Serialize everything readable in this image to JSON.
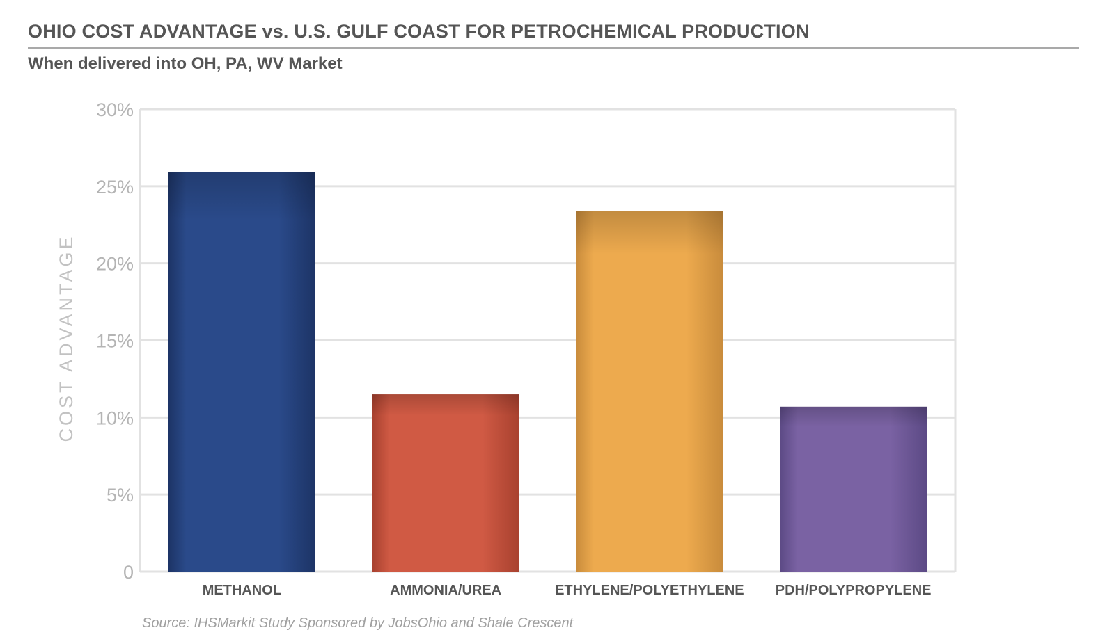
{
  "title": "OHIO COST ADVANTAGE vs. U.S. GULF COAST FOR PETROCHEMICAL PRODUCTION",
  "subtitle": "When delivered into OH, PA, WV Market",
  "source": "Source: IHSMarkit Study Sponsored by JobsOhio and Shale Crescent",
  "chart_data": {
    "type": "bar",
    "categories": [
      "METHANOL",
      "AMMONIA/UREA",
      "ETHYLENE/POLYETHYLENE",
      "PDH/POLYPROPYLENE"
    ],
    "values": [
      25.9,
      11.5,
      23.4,
      10.7
    ],
    "ylabel": "COST ADVANTAGE",
    "ylim": [
      0,
      30
    ],
    "yticks": [
      0,
      5,
      10,
      15,
      20,
      25,
      30
    ],
    "ytick_labels": [
      "0",
      "5%",
      "10%",
      "15%",
      "20%",
      "25%",
      "30%"
    ],
    "grid": true,
    "legend": "none",
    "colors": [
      "#2a4a8a",
      "#d05a44",
      "#edaa4e",
      "#7a62a3"
    ],
    "colors_edge": [
      "#1d3466",
      "#a8412f",
      "#c98c3c",
      "#5c4a85"
    ]
  }
}
